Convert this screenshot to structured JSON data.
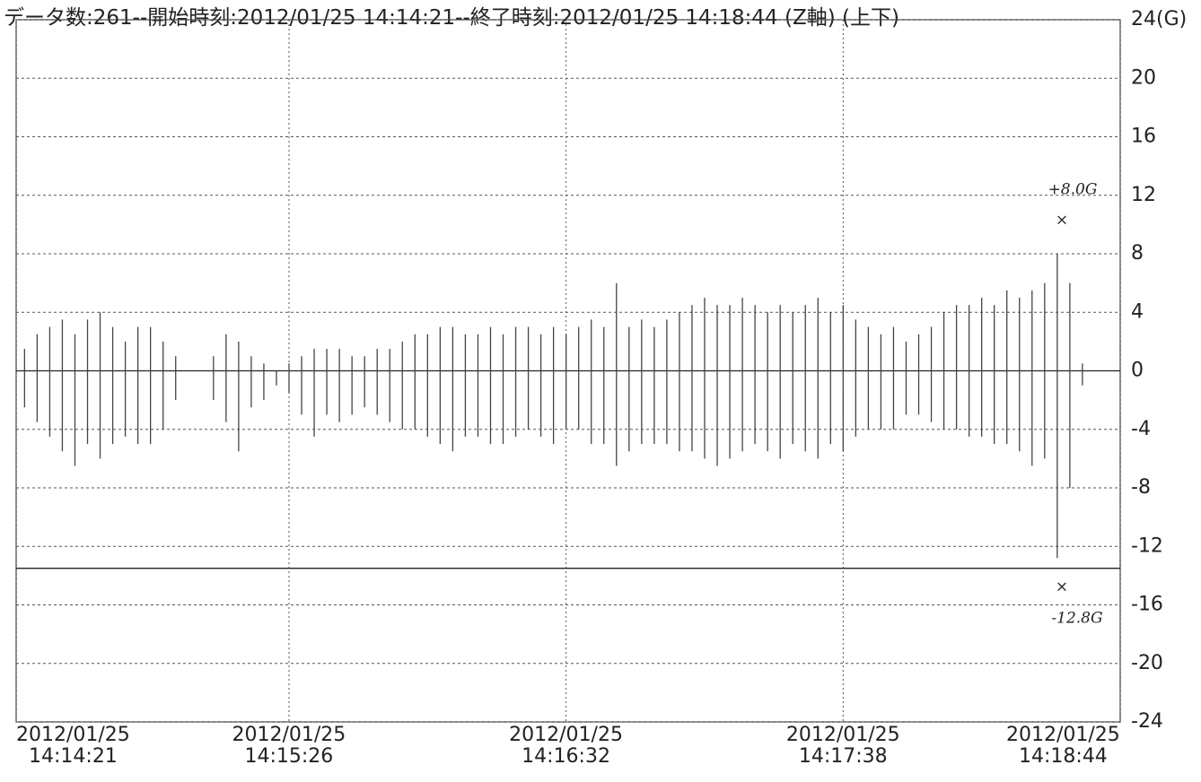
{
  "chart_data": {
    "type": "range",
    "title": "データ数:261--開始時刻:2012/01/25 14:14:21--終了時刻:2012/01/25 14:18:44 (Z軸) (上下)",
    "color": "#444444",
    "grid": true,
    "xlim": [
      0,
      263
    ],
    "xticks": [
      {
        "value": 0,
        "label": "2012/01/25\n14:14:21"
      },
      {
        "value": 65,
        "label": "2012/01/25\n14:15:26"
      },
      {
        "value": 131,
        "label": "2012/01/25\n14:16:32"
      },
      {
        "value": 197,
        "label": "2012/01/25\n14:17:38"
      },
      {
        "value": 263,
        "label": "2012/01/25\n14:18:44"
      }
    ],
    "ylim": [
      -24,
      24
    ],
    "yticks": [
      {
        "value": 24,
        "label": "24(G)"
      },
      20,
      16,
      12,
      8,
      4,
      0,
      -4,
      -8,
      -12,
      -16,
      -20,
      -24
    ],
    "reference_line": -13.5,
    "x": [
      2,
      5,
      8,
      11,
      14,
      17,
      20,
      23,
      26,
      29,
      32,
      35,
      38,
      47,
      50,
      53,
      56,
      59,
      62,
      65,
      68,
      71,
      74,
      77,
      80,
      83,
      86,
      89,
      92,
      95,
      98,
      101,
      104,
      107,
      110,
      113,
      116,
      119,
      122,
      125,
      128,
      131,
      134,
      137,
      140,
      143,
      146,
      149,
      152,
      155,
      158,
      161,
      164,
      167,
      170,
      173,
      176,
      179,
      182,
      185,
      188,
      191,
      194,
      197,
      200,
      203,
      206,
      209,
      212,
      215,
      218,
      221,
      224,
      227,
      230,
      233,
      236,
      239,
      242,
      245,
      248,
      251,
      254
    ],
    "high": [
      1.5,
      2.5,
      3,
      3.5,
      2.5,
      3.5,
      4,
      3,
      2,
      3,
      3,
      2,
      1,
      1,
      2.5,
      2,
      1,
      0.5,
      0,
      0.5,
      1,
      1.5,
      1.5,
      1.5,
      1,
      1,
      1.5,
      1.5,
      2,
      2.5,
      2.5,
      3,
      3,
      2.5,
      2.5,
      3,
      2.5,
      3,
      3,
      2.5,
      3,
      2.5,
      3,
      3.5,
      3,
      6,
      3,
      3.5,
      3,
      3.5,
      4,
      4.5,
      5,
      4.5,
      4.5,
      5,
      4.5,
      4,
      4.5,
      4,
      4.5,
      5,
      4,
      4.5,
      3.5,
      3,
      2.5,
      3,
      2,
      2.5,
      3,
      4,
      4.5,
      4.5,
      5,
      4.5,
      5.5,
      5,
      5.5,
      6,
      8,
      6,
      0.5
    ],
    "low": [
      -2.5,
      -3.5,
      -4.5,
      -5.5,
      -6.5,
      -5,
      -6,
      -5,
      -4.5,
      -5,
      -5,
      -4,
      -2,
      -2,
      -3.5,
      -5.5,
      -2.5,
      -2,
      -1,
      -1.5,
      -3,
      -4.5,
      -3,
      -3.5,
      -3,
      -2.5,
      -3,
      -3.5,
      -4,
      -4,
      -4.5,
      -5,
      -5.5,
      -4.5,
      -4.5,
      -5,
      -5,
      -4.5,
      -4,
      -4.5,
      -5,
      -4,
      -4,
      -5,
      -5,
      -6.5,
      -5.5,
      -5,
      -5,
      -5,
      -5.5,
      -5.5,
      -6,
      -6.5,
      -6,
      -5.5,
      -5,
      -5.5,
      -6,
      -5,
      -5.5,
      -6,
      -5,
      -5.5,
      -4.5,
      -4,
      -4,
      -4,
      -3,
      -3,
      -3.5,
      -4,
      -4,
      -4.5,
      -4.5,
      -5,
      -5,
      -5.5,
      -6.5,
      -6,
      -12.8,
      -8,
      -1
    ],
    "annotations": [
      "+8.0G",
      "×",
      "×",
      "-12.8G"
    ]
  }
}
